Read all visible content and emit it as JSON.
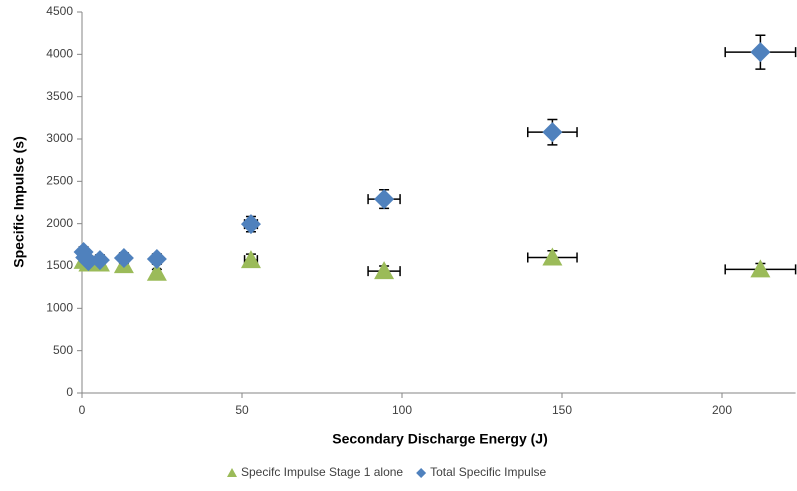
{
  "chart_data": {
    "type": "scatter",
    "x_label": "Secondary Discharge Energy (J)",
    "y_label": "Specific Impulse (s)",
    "xlim": [
      0,
      223
    ],
    "xticks": [
      0,
      50,
      100,
      150,
      200
    ],
    "ylim": [
      0,
      4500
    ],
    "yticks": [
      0,
      500,
      1000,
      1500,
      2000,
      2500,
      3000,
      3500,
      4000,
      4500
    ],
    "legend": "bottom",
    "series": [
      {
        "name": "Specifc Impulse Stage 1 alone",
        "color": "#9bbb59",
        "marker": "triangle",
        "x": [
          0.5,
          2,
          5.6,
          13.1,
          23.4,
          52.8,
          94.4,
          147,
          212
        ],
        "values": [
          1560,
          1530,
          1530,
          1510,
          1420,
          1570,
          1440,
          1600,
          1460
        ],
        "x_err": [
          0.5,
          0.5,
          0.5,
          1,
          1,
          2,
          5,
          7.7,
          11
        ],
        "y_err": [
          40,
          40,
          40,
          40,
          40,
          70,
          60,
          80,
          70
        ]
      },
      {
        "name": "Total Specific Impulse",
        "color": "#4f81bd",
        "marker": "diamond",
        "x": [
          0.5,
          1,
          2,
          5.6,
          13.1,
          23.4,
          52.8,
          94.4,
          147,
          212
        ],
        "values": [
          1665,
          1600,
          1558,
          1570,
          1594,
          1582,
          1995,
          2290,
          3081,
          4026
        ],
        "x_err": [
          0.5,
          0.5,
          0.5,
          0.5,
          1,
          1,
          2,
          5,
          7.7,
          11
        ],
        "y_err": [
          60,
          60,
          60,
          60,
          60,
          60,
          90,
          110,
          150,
          200
        ]
      }
    ]
  }
}
